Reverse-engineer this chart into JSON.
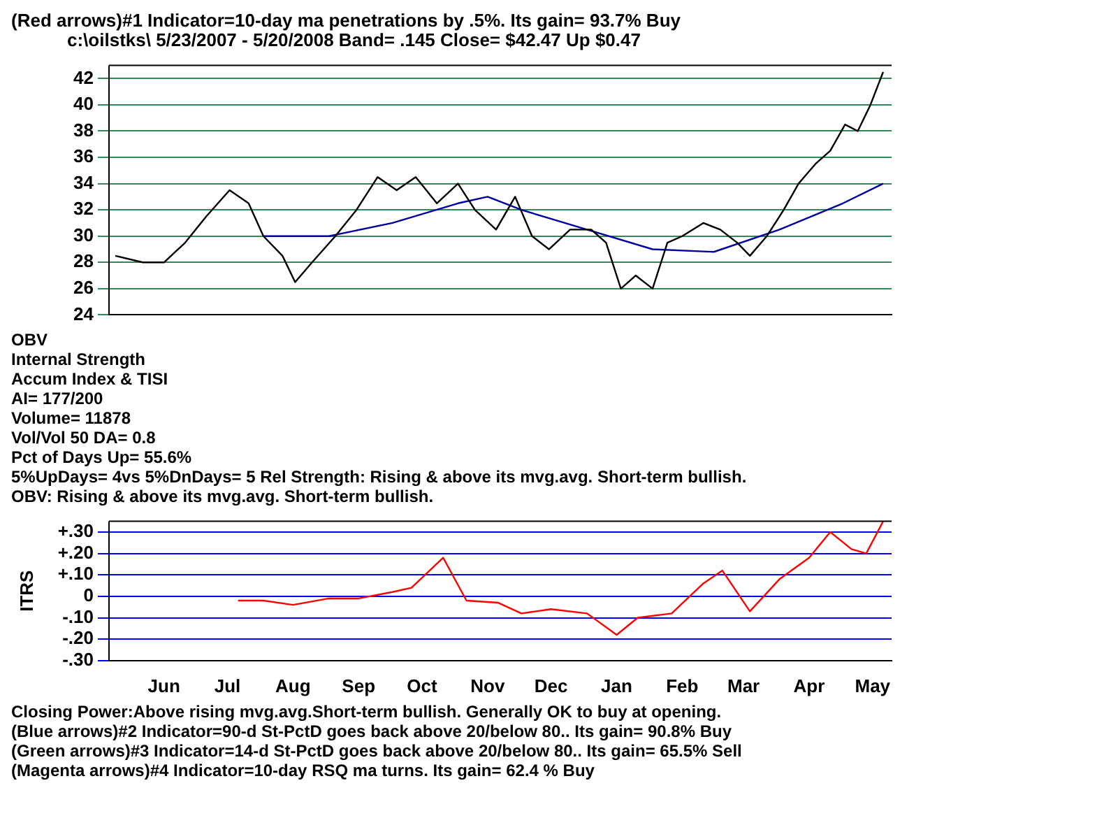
{
  "chart_data": [
    {
      "type": "line",
      "title": "(Red arrows)#1 Indicator=10-day ma penetrations by .5%.  Its gain= 93.7% Buy",
      "subtitle": "c:\\oilstks\\   5/23/2007 - 5/20/2008  Band= .145   Close= $42.47   Up $0.47",
      "x": [
        "2007-05-23",
        "2007-06-05",
        "2007-06-15",
        "2007-06-25",
        "2007-07-05",
        "2007-07-16",
        "2007-07-25",
        "2007-08-01",
        "2007-08-10",
        "2007-08-16",
        "2007-08-24",
        "2007-09-04",
        "2007-09-14",
        "2007-09-24",
        "2007-10-03",
        "2007-10-12",
        "2007-10-22",
        "2007-11-01",
        "2007-11-09",
        "2007-11-19",
        "2007-11-28",
        "2007-12-06",
        "2007-12-14",
        "2007-12-24",
        "2008-01-03",
        "2008-01-10",
        "2008-01-17",
        "2008-01-24",
        "2008-02-01",
        "2008-02-08",
        "2008-02-15",
        "2008-02-25",
        "2008-03-04",
        "2008-03-12",
        "2008-03-18",
        "2008-03-26",
        "2008-04-03",
        "2008-04-10",
        "2008-04-18",
        "2008-04-25",
        "2008-05-02",
        "2008-05-08",
        "2008-05-14",
        "2008-05-20"
      ],
      "series": [
        {
          "color": "#000000",
          "values": [
            28.5,
            28,
            28,
            29.5,
            31.5,
            33.5,
            32.5,
            30,
            28.5,
            26.5,
            28,
            30,
            32,
            34.5,
            33.5,
            34.5,
            32.5,
            34,
            32,
            30.5,
            33,
            30,
            29,
            30.5,
            30.5,
            29.5,
            26,
            27,
            26,
            29.5,
            30,
            31,
            30.5,
            29.5,
            28.5,
            30,
            32,
            34,
            35.5,
            36.5,
            38.5,
            38,
            40,
            42.5
          ]
        },
        {
          "color": "#0000a0",
          "x": [
            "2007-08-01",
            "2007-09-01",
            "2007-10-01",
            "2007-11-01",
            "2007-11-15",
            "2007-12-01",
            "2008-01-01",
            "2008-02-01",
            "2008-03-01",
            "2008-04-01",
            "2008-05-01",
            "2008-05-20"
          ],
          "values": [
            30,
            30,
            31,
            32.5,
            33,
            32,
            30.5,
            29,
            28.8,
            30.5,
            32.5,
            34
          ]
        }
      ],
      "xlim": [
        "2007-05-20",
        "2008-05-24"
      ],
      "ylim": [
        24,
        43
      ],
      "yticks": [
        24,
        26,
        28,
        30,
        32,
        34,
        36,
        38,
        40,
        42
      ],
      "grid": "y",
      "tick_labels": "y",
      "annotations": [
        "OBV",
        "Internal Strength",
        "Accum Index & TISI",
        "AI= 177/200",
        "Volume= 11878",
        "Vol/Vol 50 DA= 0.8",
        "Pct of Days Up= 55.6%",
        "5%UpDays= 4vs 5%DnDays= 5   Rel Strength: Rising & above its mvg.avg. Short-term bullish.",
        "OBV: Rising & above its mvg.avg. Short-term bullish."
      ]
    },
    {
      "type": "line",
      "ylabel": "ITRS",
      "x": [
        "2007-07-20",
        "2007-08-01",
        "2007-08-15",
        "2007-09-01",
        "2007-09-15",
        "2007-10-01",
        "2007-10-10",
        "2007-10-25",
        "2007-11-05",
        "2007-11-20",
        "2007-12-01",
        "2007-12-15",
        "2008-01-01",
        "2008-01-15",
        "2008-01-25",
        "2008-02-10",
        "2008-02-25",
        "2008-03-05",
        "2008-03-18",
        "2008-04-01",
        "2008-04-15",
        "2008-04-25",
        "2008-05-05",
        "2008-05-12",
        "2008-05-20"
      ],
      "series": [
        {
          "color": "#ff0000",
          "values": [
            -0.02,
            -0.02,
            -0.04,
            -0.01,
            -0.01,
            0.02,
            0.04,
            0.18,
            -0.02,
            -0.03,
            -0.08,
            -0.06,
            -0.08,
            -0.18,
            -0.1,
            -0.08,
            0.06,
            0.12,
            -0.07,
            0.08,
            0.18,
            0.3,
            0.22,
            0.2,
            0.35
          ]
        }
      ],
      "xlim": [
        "2007-05-20",
        "2008-05-24"
      ],
      "ylim": [
        -0.3,
        0.35
      ],
      "yticks": [
        {
          "value": -0.3,
          "label": "-.30"
        },
        {
          "value": -0.2,
          "label": "-.20"
        },
        {
          "value": -0.1,
          "label": "-.10"
        },
        {
          "value": 0,
          "label": "0"
        },
        {
          "value": 0.1,
          "label": "+.10"
        },
        {
          "value": 0.2,
          "label": "+.20"
        },
        {
          "value": 0.3,
          "label": "+.30"
        }
      ],
      "xticks": [
        {
          "value": "2007-06-15",
          "label": "Jun"
        },
        {
          "value": "2007-07-15",
          "label": "Jul"
        },
        {
          "value": "2007-08-15",
          "label": "Aug"
        },
        {
          "value": "2007-09-15",
          "label": "Sep"
        },
        {
          "value": "2007-10-15",
          "label": "Oct"
        },
        {
          "value": "2007-11-15",
          "label": "Nov"
        },
        {
          "value": "2007-12-15",
          "label": "Dec"
        },
        {
          "value": "2008-01-15",
          "label": "Jan"
        },
        {
          "value": "2008-02-15",
          "label": "Feb"
        },
        {
          "value": "2008-03-15",
          "label": "Mar"
        },
        {
          "value": "2008-04-15",
          "label": "Apr"
        },
        {
          "value": "2008-05-15",
          "label": "May"
        }
      ],
      "grid": "y",
      "annotations": [
        "Closing Power:Above rising mvg.avg.Short-term bullish. Generally OK to buy at opening.",
        "(Blue arrows)#2 Indicator=90-d St-PctD goes back above 20/below 80.. Its gain= 90.8% Buy",
        "(Green arrows)#3 Indicator=14-d St-PctD goes back above 20/below 80.. Its gain= 65.5% Sell",
        "(Magenta arrows)#4 Indicator=10-day RSQ ma turns. Its gain= 62.4 % Buy"
      ]
    }
  ]
}
